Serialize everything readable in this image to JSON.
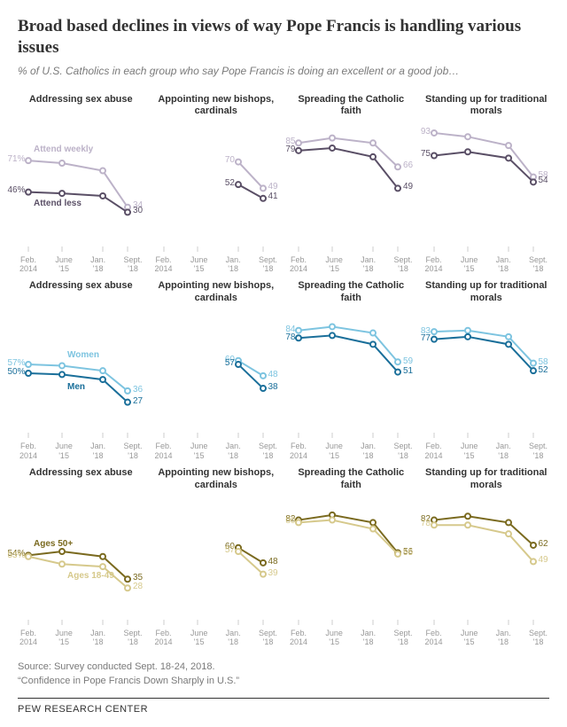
{
  "title": "Broad based declines in views of way Pope Francis is handling various issues",
  "subtitle": "% of U.S. Catholics in each group who say Pope Francis is doing an excellent or a good job…",
  "footer": {
    "line1": "Source: Survey conducted Sept. 18-24, 2018.",
    "line2": "“Confidence in Pope Francis Down Sharply in U.S.”"
  },
  "brand": "PEW RESEARCH CENTER",
  "chart_layout": {
    "width": 140,
    "height": 150,
    "ymin": 0,
    "ymax": 100,
    "x_positions": [
      12,
      50,
      96,
      124
    ],
    "marker_radius": 3,
    "line_width": 2,
    "label_fontsize": 10,
    "axis_fontsize": 9,
    "title_fontsize": 11,
    "x_labels": [
      "Feb.\n2014",
      "June\n'15",
      "Jan.\n'18",
      "Sept.\n'18"
    ],
    "x_tick_color": "#cccccc"
  },
  "rows": [
    {
      "colors": {
        "light": "#bcb2c8",
        "dark": "#5a4f66"
      },
      "label_light": "Attend weekly",
      "label_dark": "Attend less",
      "panels": [
        {
          "title": "Addressing sex abuse",
          "series": [
            {
              "key": "light",
              "data": [
                71,
                69,
                63,
                34
              ],
              "first_label": "71%",
              "last_label": "34",
              "mid_label": {
                "text": "Attend weekly",
                "after_point": 0,
                "dy": -12
              }
            },
            {
              "key": "dark",
              "data": [
                46,
                45,
                43,
                30
              ],
              "first_label": "46%",
              "last_label": "30",
              "mid_label": {
                "text": "Attend less",
                "after_point": 0,
                "dy": 14
              }
            }
          ]
        },
        {
          "title": "Appointing new bishops, cardinals",
          "series": [
            {
              "key": "light",
              "data": [
                null,
                null,
                70,
                49
              ],
              "first_label": "70",
              "last_label": "49"
            },
            {
              "key": "dark",
              "data": [
                null,
                null,
                52,
                41
              ],
              "first_label": "52",
              "last_label": "41"
            }
          ]
        },
        {
          "title": "Spreading the Catholic faith",
          "series": [
            {
              "key": "light",
              "data": [
                85,
                89,
                85,
                66
              ],
              "first_label": "85",
              "last_label": "66"
            },
            {
              "key": "dark",
              "data": [
                79,
                81,
                74,
                49
              ],
              "first_label": "79",
              "last_label": "49"
            }
          ]
        },
        {
          "title": "Standing up for traditional morals",
          "series": [
            {
              "key": "light",
              "data": [
                93,
                90,
                83,
                58
              ],
              "first_label": "93",
              "last_label": "58"
            },
            {
              "key": "dark",
              "data": [
                75,
                78,
                73,
                54
              ],
              "first_label": "75",
              "last_label": "54"
            }
          ]
        }
      ]
    },
    {
      "colors": {
        "light": "#7dc4e0",
        "dark": "#1a6f9a"
      },
      "label_light": "Women",
      "label_dark": "Men",
      "panels": [
        {
          "title": "Addressing sex abuse",
          "series": [
            {
              "key": "light",
              "data": [
                57,
                56,
                52,
                36
              ],
              "first_label": "57%",
              "last_label": "36",
              "mid_label": {
                "text": "Women",
                "after_point": 1,
                "dy": -12
              }
            },
            {
              "key": "dark",
              "data": [
                50,
                49,
                45,
                27
              ],
              "first_label": "50%",
              "last_label": "27",
              "mid_label": {
                "text": "Men",
                "after_point": 1,
                "dy": 14
              }
            }
          ]
        },
        {
          "title": "Appointing new bishops, cardinals",
          "series": [
            {
              "key": "light",
              "data": [
                null,
                null,
                60,
                48
              ],
              "first_label": "60",
              "last_label": "48"
            },
            {
              "key": "dark",
              "data": [
                null,
                null,
                57,
                38
              ],
              "first_label": "57",
              "last_label": "38"
            }
          ]
        },
        {
          "title": "Spreading the Catholic faith",
          "series": [
            {
              "key": "light",
              "data": [
                84,
                87,
                82,
                59
              ],
              "first_label": "84",
              "last_label": "59"
            },
            {
              "key": "dark",
              "data": [
                78,
                80,
                73,
                51
              ],
              "first_label": "78",
              "last_label": "51"
            }
          ]
        },
        {
          "title": "Standing up for traditional morals",
          "series": [
            {
              "key": "light",
              "data": [
                83,
                84,
                79,
                58
              ],
              "first_label": "83",
              "last_label": "58"
            },
            {
              "key": "dark",
              "data": [
                77,
                79,
                73,
                52
              ],
              "first_label": "77",
              "last_label": "52"
            }
          ]
        }
      ]
    },
    {
      "colors": {
        "light": "#d6c98c",
        "dark": "#7a6a1f"
      },
      "label_light": "Ages 18-49",
      "label_dark": "Ages 50+",
      "panels": [
        {
          "title": "Addressing sex abuse",
          "series": [
            {
              "key": "dark",
              "data": [
                54,
                57,
                53,
                35
              ],
              "first_label": "54%",
              "last_label": "35",
              "mid_label": {
                "text": "Ages 50+",
                "after_point": 0,
                "dy": -12
              }
            },
            {
              "key": "light",
              "data": [
                53,
                47,
                45,
                28
              ],
              "first_label": "53%",
              "last_label": "28",
              "mid_label": {
                "text": "Ages 18-49",
                "after_point": 1,
                "dy": 14
              }
            }
          ]
        },
        {
          "title": "Appointing new bishops, cardinals",
          "series": [
            {
              "key": "dark",
              "data": [
                null,
                null,
                60,
                48
              ],
              "first_label": "60",
              "last_label": "48"
            },
            {
              "key": "light",
              "data": [
                null,
                null,
                57,
                39
              ],
              "first_label": "57",
              "last_label": "39"
            }
          ]
        },
        {
          "title": "Spreading the Catholic faith",
          "series": [
            {
              "key": "dark",
              "data": [
                82,
                86,
                80,
                56
              ],
              "first_label": "82",
              "last_label": "56"
            },
            {
              "key": "light",
              "data": [
                80,
                82,
                75,
                55
              ],
              "first_label": "80",
              "last_label": "55"
            }
          ]
        },
        {
          "title": "Standing up for traditional morals",
          "series": [
            {
              "key": "dark",
              "data": [
                82,
                85,
                80,
                62
              ],
              "first_label": "82",
              "last_label": "62"
            },
            {
              "key": "light",
              "data": [
                78,
                78,
                71,
                49
              ],
              "first_label": "78",
              "last_label": "49"
            }
          ]
        }
      ]
    }
  ]
}
